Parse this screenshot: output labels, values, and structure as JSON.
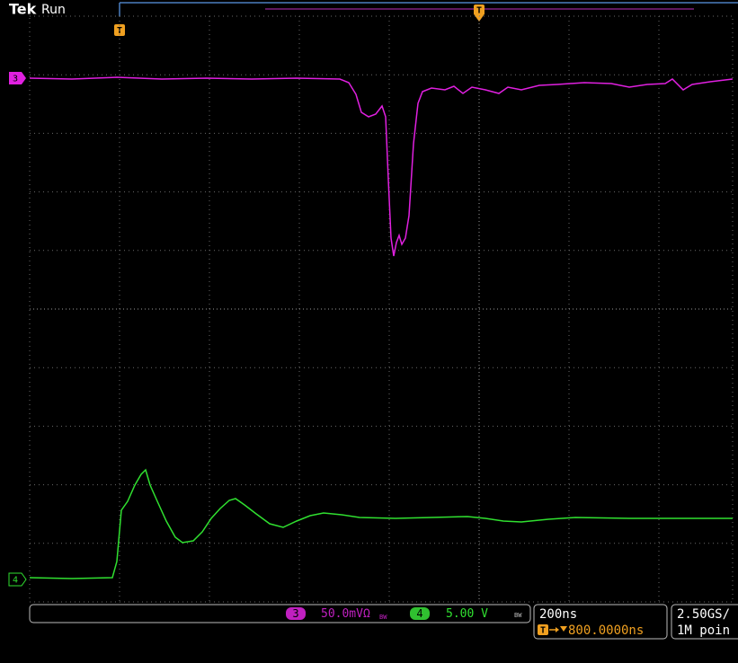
{
  "header": {
    "brand": "Tek",
    "status": "Run"
  },
  "markers": {
    "trigger_top": "T",
    "trigger_position": "T",
    "ch3": "3",
    "ch4": "4"
  },
  "status_bar": {
    "ch3": {
      "label": "3",
      "scale": "50.0mVΩ",
      "bandwidth": "BW"
    },
    "ch4": {
      "label": "4",
      "scale": "5.00 V",
      "bandwidth": "BW"
    },
    "timebase": {
      "scale": "200ns",
      "trigger_icon": "T",
      "position": "800.0000ns"
    },
    "acquisition": {
      "rate": "2.50GS/",
      "length": "1M poin"
    }
  }
}
